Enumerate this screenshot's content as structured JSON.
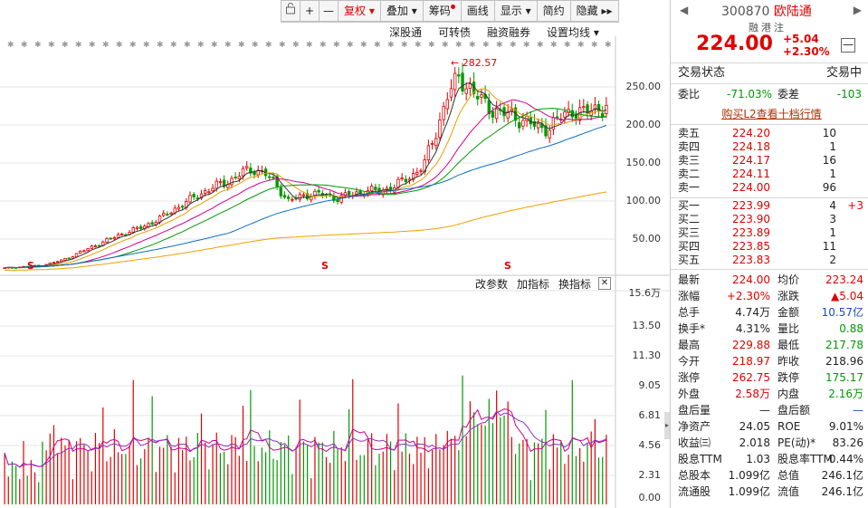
{
  "toolbar": {
    "restore": "复权",
    "overlay": "叠加",
    "chips": "筹码",
    "draw": "画线",
    "display": "显示",
    "simple": "简约",
    "hide": "隐藏"
  },
  "links": [
    "深股通",
    "可转债",
    "融资融券",
    "设置均线"
  ],
  "chart": {
    "peak_label": "282.57",
    "price_axis": [
      "250.00",
      "200.00",
      "150.00",
      "100.00",
      "50.00"
    ],
    "vol_tools": [
      "改参数",
      "加指标",
      "换指标"
    ],
    "vol_axis": [
      "15.6万",
      "13.50",
      "11.30",
      "9.05",
      "6.81",
      "4.56",
      "2.31",
      "0.00"
    ],
    "s_markers": [
      "S",
      "S",
      "S"
    ]
  },
  "chart_data": {
    "type": "candlestick+volume",
    "y_price_ticks": [
      50,
      100,
      150,
      200,
      250
    ],
    "peak": 282.57,
    "close_series": [
      12,
      13,
      14,
      15,
      18,
      22,
      28,
      35,
      42,
      48,
      55,
      60,
      65,
      72,
      80,
      90,
      98,
      108,
      115,
      122,
      128,
      138,
      142,
      135,
      120,
      100,
      105,
      110,
      108,
      104,
      106,
      110,
      114,
      112,
      118,
      125,
      135,
      150,
      190,
      240,
      260,
      250,
      230,
      220,
      215,
      210,
      205,
      195,
      198,
      210,
      220,
      215,
      222,
      224
    ],
    "volume_ticks": [
      0.0,
      2.31,
      4.56,
      6.81,
      9.05,
      11.3,
      13.5
    ],
    "volume_unit": "万"
  },
  "quote": {
    "code": "300870",
    "name": "欧陆通",
    "tags": [
      "融",
      "港",
      "注"
    ],
    "price": "224.00",
    "change": "+5.04",
    "change_pct": "+2.30%",
    "trade_status_label": "交易状态",
    "trade_status": "交易中",
    "wei_bi_label": "委比",
    "wei_bi": "-71.03%",
    "wei_cha_label": "委差",
    "wei_cha": "-103",
    "l2_link": "购买L2查看十档行情"
  },
  "asks": [
    {
      "label": "卖五",
      "price": "224.20",
      "vol": "10"
    },
    {
      "label": "卖四",
      "price": "224.18",
      "vol": "1"
    },
    {
      "label": "卖三",
      "price": "224.17",
      "vol": "16"
    },
    {
      "label": "卖二",
      "price": "224.11",
      "vol": "1"
    },
    {
      "label": "卖一",
      "price": "224.00",
      "vol": "96"
    }
  ],
  "bids": [
    {
      "label": "买一",
      "price": "223.99",
      "vol": "4",
      "chg": "+3"
    },
    {
      "label": "买二",
      "price": "223.90",
      "vol": "3",
      "chg": ""
    },
    {
      "label": "买三",
      "price": "223.89",
      "vol": "1",
      "chg": ""
    },
    {
      "label": "买四",
      "price": "223.85",
      "vol": "11",
      "chg": ""
    },
    {
      "label": "买五",
      "price": "223.83",
      "vol": "2",
      "chg": ""
    }
  ],
  "stats": [
    {
      "l1": "最新",
      "v1": "224.00",
      "c1": "red",
      "l2": "均价",
      "v2": "223.24",
      "c2": "red"
    },
    {
      "l1": "涨幅",
      "v1": "+2.30%",
      "c1": "red",
      "l2": "涨跌",
      "v2": "▲5.04",
      "c2": "red"
    },
    {
      "l1": "总手",
      "v1": "4.74万",
      "c1": "",
      "l2": "金额",
      "v2": "10.57亿",
      "c2": "blue"
    },
    {
      "l1": "换手*",
      "v1": "4.31%",
      "c1": "",
      "l2": "量比",
      "v2": "0.88",
      "c2": "green"
    },
    {
      "l1": "最高",
      "v1": "229.88",
      "c1": "red",
      "l2": "最低",
      "v2": "217.78",
      "c2": "green"
    },
    {
      "l1": "今开",
      "v1": "218.97",
      "c1": "red",
      "l2": "昨收",
      "v2": "218.96",
      "c2": ""
    },
    {
      "l1": "涨停",
      "v1": "262.75",
      "c1": "red",
      "l2": "跌停",
      "v2": "175.17",
      "c2": "green"
    },
    {
      "l1": "外盘",
      "v1": "2.58万",
      "c1": "red",
      "l2": "内盘",
      "v2": "2.16万",
      "c2": "green"
    },
    {
      "l1": "盘后量",
      "v1": "—",
      "c1": "",
      "l2": "盘后额",
      "v2": "—",
      "c2": "blue"
    },
    {
      "l1": "净资产",
      "v1": "24.05",
      "c1": "",
      "l2": "ROE",
      "v2": "9.01%",
      "c2": ""
    },
    {
      "l1": "收益㈢",
      "v1": "2.018",
      "c1": "",
      "l2": "PE(动)*",
      "v2": "83.26",
      "c2": ""
    },
    {
      "l1": "股息TTM",
      "v1": "1.03",
      "c1": "",
      "l2": "股息率TTM",
      "v2": "0.44%",
      "c2": ""
    },
    {
      "l1": "总股本",
      "v1": "1.099亿",
      "c1": "",
      "l2": "总值",
      "v2": "246.1亿",
      "c2": ""
    },
    {
      "l1": "流通股",
      "v1": "1.099亿",
      "c1": "",
      "l2": "流值",
      "v2": "246.1亿",
      "c2": ""
    }
  ]
}
